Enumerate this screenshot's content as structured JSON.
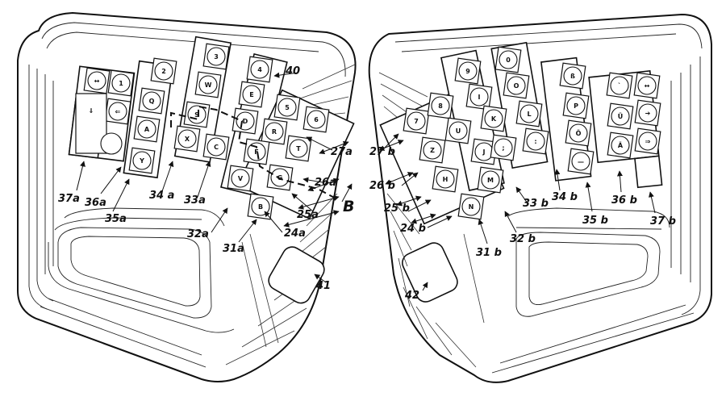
{
  "keys": {
    "left": {
      "k_ins": "↔",
      "k_1": "1",
      "k_2": "2",
      "k_3": "3",
      "k_4": "4",
      "k_back": "⇐",
      "k_q": "Q",
      "k_w": "W",
      "k_e": "E",
      "k_5": "5",
      "k_6": "6",
      "k_a": "A",
      "k_s": "S",
      "k_d": "D",
      "k_r": "R",
      "k_t": "T",
      "k_y": "Y",
      "k_x": "X",
      "k_c": "C",
      "k_f": "F",
      "k_g": "G",
      "k_v": "V",
      "k_b": "B",
      "k_big": "⇓"
    },
    "right": {
      "k_7": "7",
      "k_8": "8",
      "k_9": "9",
      "k_0": "0",
      "k_ss": "ß",
      "k_acc": "`",
      "k_tab": "↔",
      "k_z": "Z",
      "k_u": "U",
      "k_i": "I",
      "k_o": "O",
      "k_p": "P",
      "k_ue": "Ü",
      "k_h": "H",
      "k_j": "J",
      "k_k": "K",
      "k_l": "L",
      "k_oe": "Ö",
      "k_ae": "Ä",
      "k_n": "N",
      "k_m": "M",
      "k_comma": ";",
      "k_colon": ":",
      "k_dash": "—",
      "k_arr1": "➔",
      "k_arr2": "⇒"
    }
  },
  "labels": {
    "l37a": "37a",
    "l36a": "36a",
    "l35a": "35a",
    "l34a": "34 a",
    "l33a": "33a",
    "l32a": "32a",
    "l31a": "31a",
    "l24a": "24a",
    "l25a": "25a",
    "l26a": "26a",
    "l27a": "27a",
    "lB": "B",
    "l40": "40",
    "l41": "41",
    "l42": "42",
    "l27b": "27 b",
    "l26b": "26 b",
    "l25b": "25 b",
    "l24b": "24 b",
    "l31b": "31 b",
    "l32b": "32 b",
    "l33b": "33 b",
    "l34b": "34 b",
    "l35b": "35 b",
    "l36b": "36 b",
    "l37b": "37 b"
  }
}
